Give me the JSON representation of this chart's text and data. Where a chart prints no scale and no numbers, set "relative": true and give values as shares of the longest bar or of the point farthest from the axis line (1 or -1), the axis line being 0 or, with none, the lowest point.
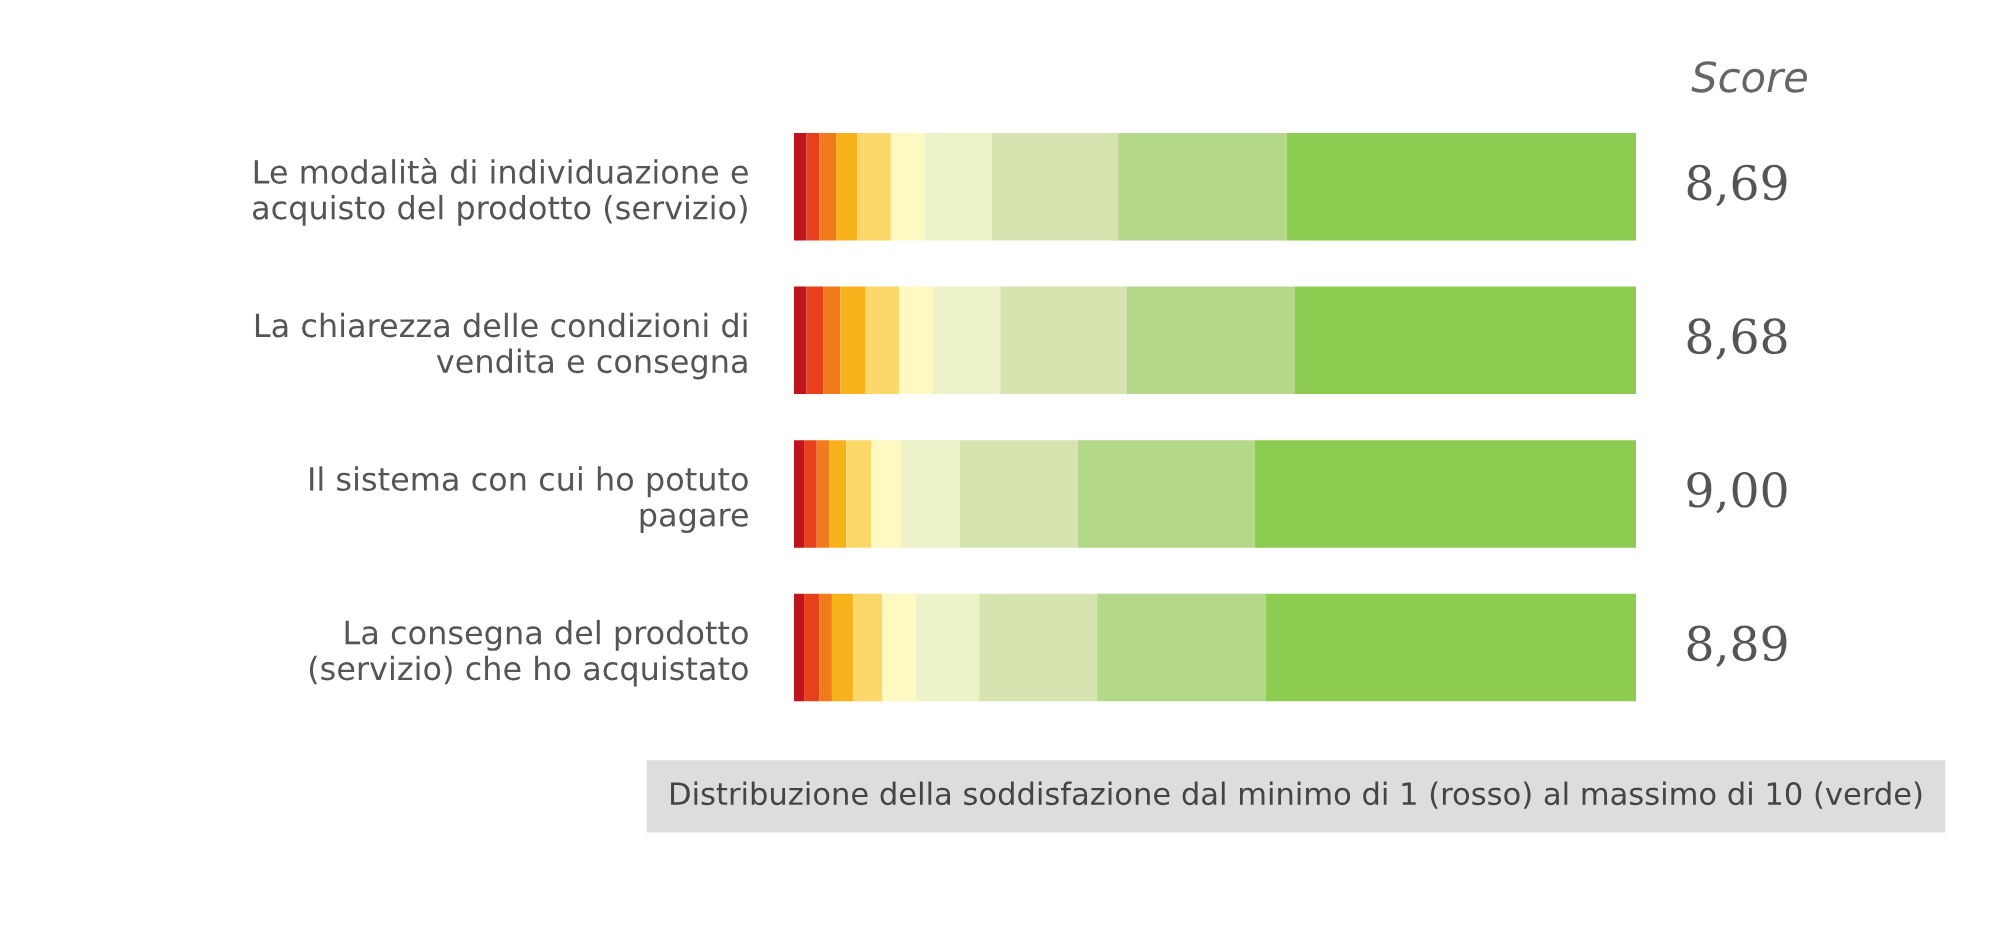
{
  "chart_data": {
    "type": "bar",
    "orientation": "horizontal",
    "stacked": true,
    "relative": true,
    "categories": [
      "Le modalità di individuazione e\nacquisto del prodotto (servizio)",
      "La chiarezza delle condizioni di\nvendita e consegna",
      "Il sistema con cui ho potuto\npagare",
      "La consegna del prodotto\n(servizio) che ho acquistato"
    ],
    "series": [
      {
        "color": "#c0141c",
        "values": [
          0.015,
          0.015,
          0.012,
          0.012
        ]
      },
      {
        "color": "#e8401c",
        "values": [
          0.015,
          0.02,
          0.015,
          0.018
        ]
      },
      {
        "color": "#f07a1c",
        "values": [
          0.02,
          0.02,
          0.015,
          0.015
        ]
      },
      {
        "color": "#f7b21c",
        "values": [
          0.025,
          0.03,
          0.02,
          0.025
        ]
      },
      {
        "color": "#fcd86a",
        "values": [
          0.04,
          0.04,
          0.03,
          0.035
        ]
      },
      {
        "color": "#fdf9c0",
        "values": [
          0.04,
          0.04,
          0.035,
          0.04
        ]
      },
      {
        "color": "#eef2c8",
        "values": [
          0.08,
          0.08,
          0.07,
          0.075
        ]
      },
      {
        "color": "#d6e4b0",
        "values": [
          0.15,
          0.15,
          0.14,
          0.14
        ]
      },
      {
        "color": "#b4d88a",
        "values": [
          0.2,
          0.2,
          0.21,
          0.2
        ]
      },
      {
        "color": "#8ccc50",
        "values": [
          0.415,
          0.405,
          0.453,
          0.44
        ]
      }
    ],
    "annotations": [
      "Score",
      "8,69",
      "8,68",
      "9,00",
      "8,89",
      "Distribuzione della soddisfazione dal minimo di 1 (rosso) al massimo di 10 (verde)"
    ],
    "grid": false,
    "legend": false
  }
}
